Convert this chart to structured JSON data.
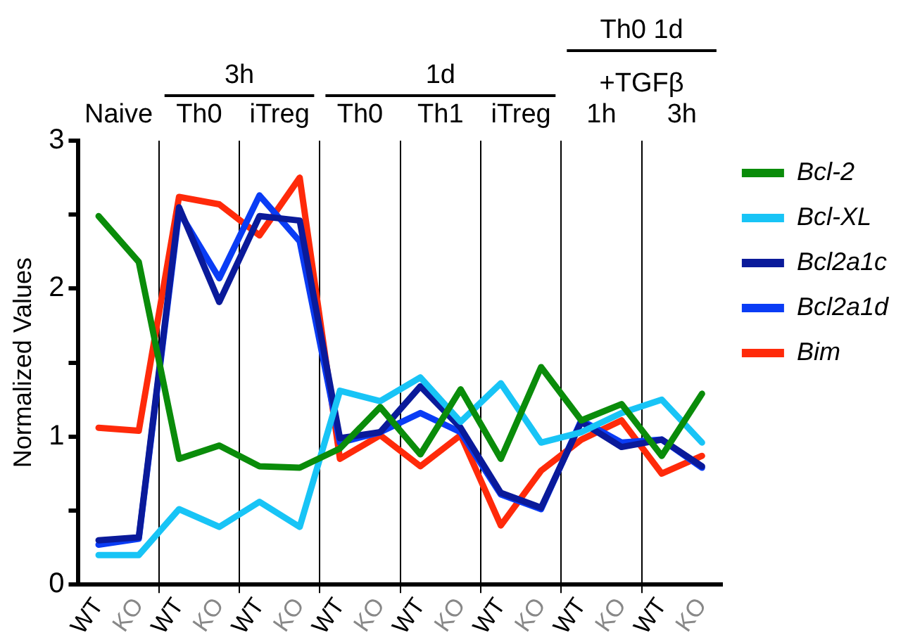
{
  "chart_data": {
    "type": "line",
    "ylabel": "Normalized Values",
    "categories": [
      "WT",
      "KO",
      "WT",
      "KO",
      "WT",
      "KO",
      "WT",
      "KO",
      "WT",
      "KO",
      "WT",
      "KO",
      "WT",
      "KO",
      "WT",
      "KO"
    ],
    "series": [
      {
        "name": "Bcl-2",
        "color": "#0a8c0a",
        "values": [
          2.49,
          2.18,
          0.85,
          0.94,
          0.8,
          0.79,
          0.92,
          1.2,
          0.88,
          1.32,
          0.85,
          1.47,
          1.11,
          1.22,
          0.87,
          1.29
        ]
      },
      {
        "name": "Bcl-XL",
        "color": "#18c4f6",
        "values": [
          0.2,
          0.2,
          0.51,
          0.39,
          0.56,
          0.39,
          1.31,
          1.24,
          1.4,
          1.1,
          1.36,
          0.96,
          1.03,
          1.16,
          1.25,
          0.96
        ]
      },
      {
        "name": "Bcl2a1c",
        "color": "#0a1a9a",
        "values": [
          0.3,
          0.32,
          2.55,
          1.91,
          2.49,
          2.46,
          0.99,
          1.03,
          1.34,
          1.06,
          0.62,
          0.52,
          1.1,
          0.93,
          0.98,
          0.8
        ]
      },
      {
        "name": "Bcl2a1d",
        "color": "#0a3cf5",
        "values": [
          0.27,
          0.31,
          2.52,
          2.07,
          2.63,
          2.32,
          0.96,
          1.03,
          1.16,
          1.03,
          0.61,
          0.51,
          1.11,
          0.96,
          0.98,
          0.79
        ]
      },
      {
        "name": "Bim",
        "color": "#ff2a0a",
        "values": [
          1.06,
          1.04,
          2.62,
          2.57,
          2.36,
          2.75,
          0.85,
          1.01,
          0.8,
          1.01,
          0.4,
          0.77,
          0.98,
          1.11,
          0.75,
          0.87
        ]
      }
    ],
    "ylim": [
      0,
      3
    ],
    "yticks": [
      0,
      {
        "value": 0.5,
        "label": null
      },
      1,
      {
        "value": 1.5,
        "label": null
      },
      2,
      {
        "value": 2.5,
        "label": null
      },
      3
    ],
    "grid": "x",
    "legend": "right",
    "marker": "none",
    "line_style": "solid",
    "annotations": [
      "Naive",
      "Th0",
      "iTreg",
      "Th0",
      "Th1",
      "iTreg",
      "1h",
      "3h",
      "3h",
      "1d",
      "Th0 1d",
      "+TGFβ"
    ]
  }
}
